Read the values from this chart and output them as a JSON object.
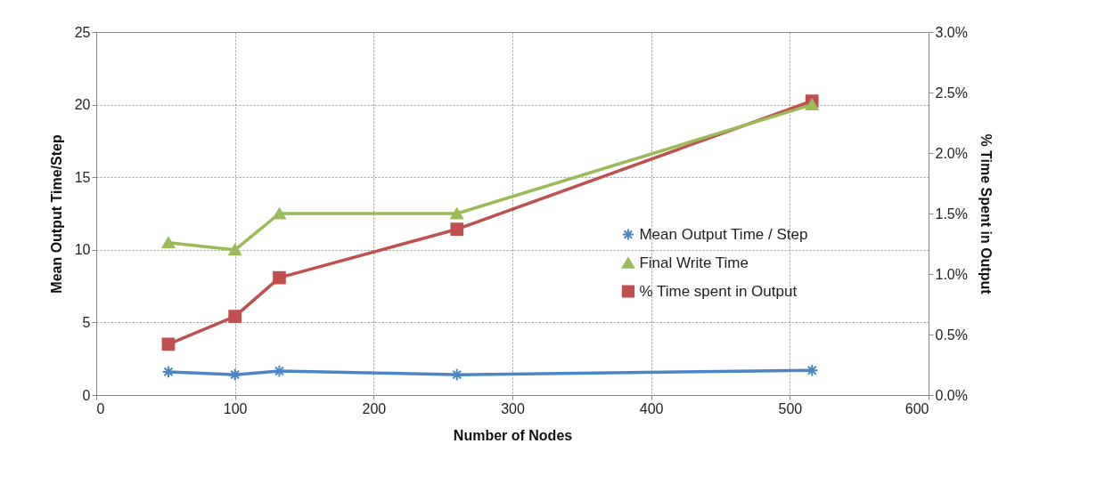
{
  "chart_data": {
    "type": "line",
    "xlabel": "Number of Nodes",
    "ylabel": "Mean Output Time/Step",
    "y2label": "% Time Spent in Output",
    "x": [
      52,
      100,
      132,
      260,
      516
    ],
    "xlim": [
      0,
      600
    ],
    "xticks": [
      0,
      100,
      200,
      300,
      400,
      500,
      600
    ],
    "ylim": [
      0,
      25
    ],
    "yticks": [
      0,
      5,
      10,
      15,
      20,
      25
    ],
    "y2lim": [
      0,
      3
    ],
    "y2ticks": [
      {
        "value": 0,
        "label": "0.0%"
      },
      {
        "value": 0.5,
        "label": "0.5%"
      },
      {
        "value": 1,
        "label": "1.0%"
      },
      {
        "value": 1.5,
        "label": "1.5%"
      },
      {
        "value": 2,
        "label": "2.0%"
      },
      {
        "value": 2.5,
        "label": "2.5%"
      },
      {
        "value": 3,
        "label": "3.0%"
      }
    ],
    "series": [
      {
        "name": "Mean Output Time / Step",
        "color": "#4a86c5",
        "marker": "cross",
        "values": [
          1.6,
          1.4,
          1.65,
          1.4,
          1.7
        ]
      },
      {
        "name": "Final Write Time",
        "color": "#9bbb59",
        "marker": "triangle",
        "values": [
          10.5,
          10,
          12.5,
          12.5,
          20
        ]
      },
      {
        "name": "% Time spent in Output",
        "color": "#c0504d",
        "marker": "square",
        "axis": "y2",
        "values": [
          0.42,
          0.65,
          0.97,
          1.37,
          2.43
        ]
      }
    ],
    "grid": true,
    "legend": "right"
  }
}
